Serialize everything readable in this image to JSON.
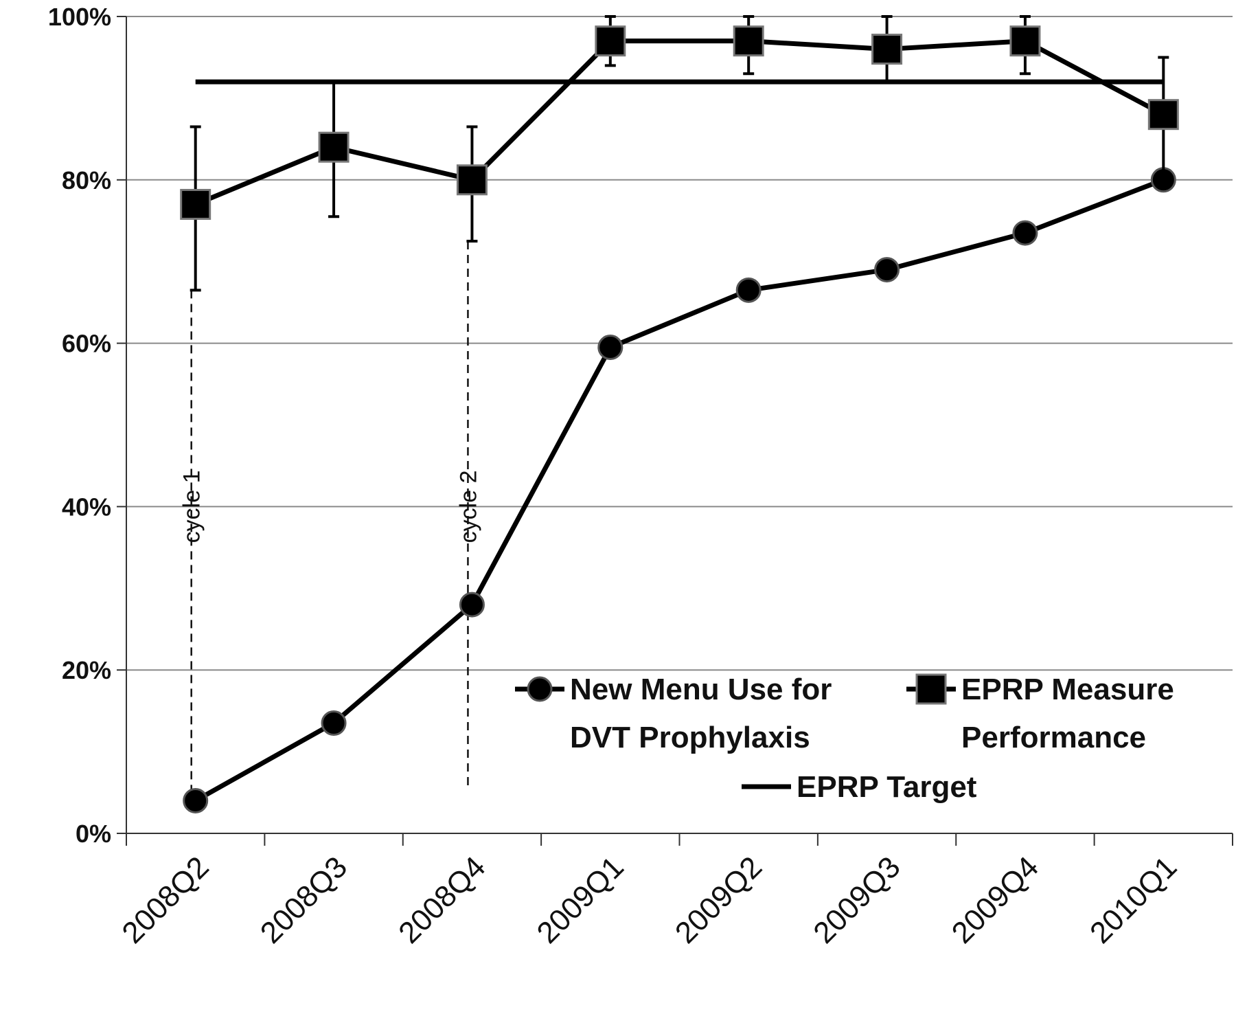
{
  "chart_data": {
    "type": "line",
    "categories": [
      "2008Q2",
      "2008Q3",
      "2008Q4",
      "2009Q1",
      "2009Q2",
      "2009Q3",
      "2009Q4",
      "2010Q1"
    ],
    "ylim": [
      0,
      1
    ],
    "yticks": [
      "0%",
      "20%",
      "40%",
      "60%",
      "80%",
      "100%"
    ],
    "grid": true,
    "series": [
      {
        "name_lines": [
          "New Menu Use for",
          "DVT Prophylaxis"
        ],
        "marker": "circle",
        "values": [
          0.04,
          0.135,
          0.28,
          0.595,
          0.665,
          0.69,
          0.735,
          0.8
        ]
      },
      {
        "name_lines": [
          "EPRP Measure",
          "Performance"
        ],
        "marker": "square",
        "values": [
          0.77,
          0.84,
          0.8,
          0.97,
          0.97,
          0.96,
          0.97,
          0.88
        ],
        "err_low": [
          0.665,
          0.755,
          0.725,
          0.94,
          0.93,
          0.92,
          0.93,
          0.8
        ],
        "err_high": [
          0.865,
          0.92,
          0.865,
          1.0,
          1.0,
          1.0,
          1.0,
          0.95
        ]
      },
      {
        "name_lines": [
          "EPRP Target"
        ],
        "marker": "none",
        "values": [
          0.92,
          0.92,
          0.92,
          0.92,
          0.92,
          0.92,
          0.92,
          0.92
        ]
      }
    ],
    "annotations": [
      {
        "text": "cycle 1",
        "at_category": "2008Q2",
        "y_from": 0.04,
        "y_to": 0.665
      },
      {
        "text": "cycle 2",
        "at_category": "2008Q4",
        "y_from": 0.055,
        "y_to": 0.725
      }
    ],
    "legend_position": "bottom-right inside plot"
  }
}
